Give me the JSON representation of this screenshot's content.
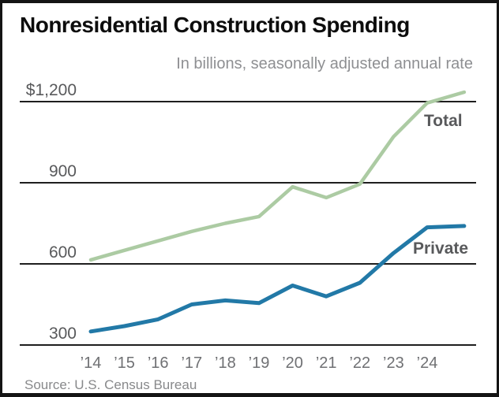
{
  "chart_data": {
    "type": "line",
    "title": "Nonresidential Construction Spending",
    "subtitle": "In billions, seasonally adjusted annual rate",
    "source": "Source: U.S. Census Bureau",
    "xlabel": "",
    "ylabel": "",
    "ylim": [
      300,
      1260
    ],
    "grid": "horizontal",
    "legend_position": "inline-right",
    "x": [
      2014,
      2015,
      2016,
      2017,
      2018,
      2019,
      2020,
      2021,
      2022,
      2023,
      2024,
      2025.1
    ],
    "xtick_labels": [
      "’14",
      "’15",
      "’16",
      "’17",
      "’18",
      "’19",
      "’20",
      "’21",
      "’22",
      "’23",
      "’24"
    ],
    "ytick_values": [
      1200,
      900,
      600,
      300
    ],
    "ytick_labels": [
      "$1,200",
      "900",
      "600",
      "300"
    ],
    "series": [
      {
        "name": "Total",
        "color": "#ACCBA3",
        "stroke_width": 4.5,
        "values": [
          615,
          650,
          685,
          720,
          750,
          775,
          885,
          845,
          895,
          1070,
          1195,
          1235
        ]
      },
      {
        "name": "Private",
        "color": "#2279A7",
        "stroke_width": 5,
        "values": [
          350,
          370,
          395,
          450,
          465,
          455,
          520,
          480,
          530,
          640,
          735,
          740
        ]
      }
    ],
    "colors": {
      "title_text": "#0D0D0D",
      "subtitle_text": "#8E8F92",
      "tick_text": "#58595B",
      "gridline": "#1E1E1E",
      "frame_border": "#141414"
    }
  }
}
